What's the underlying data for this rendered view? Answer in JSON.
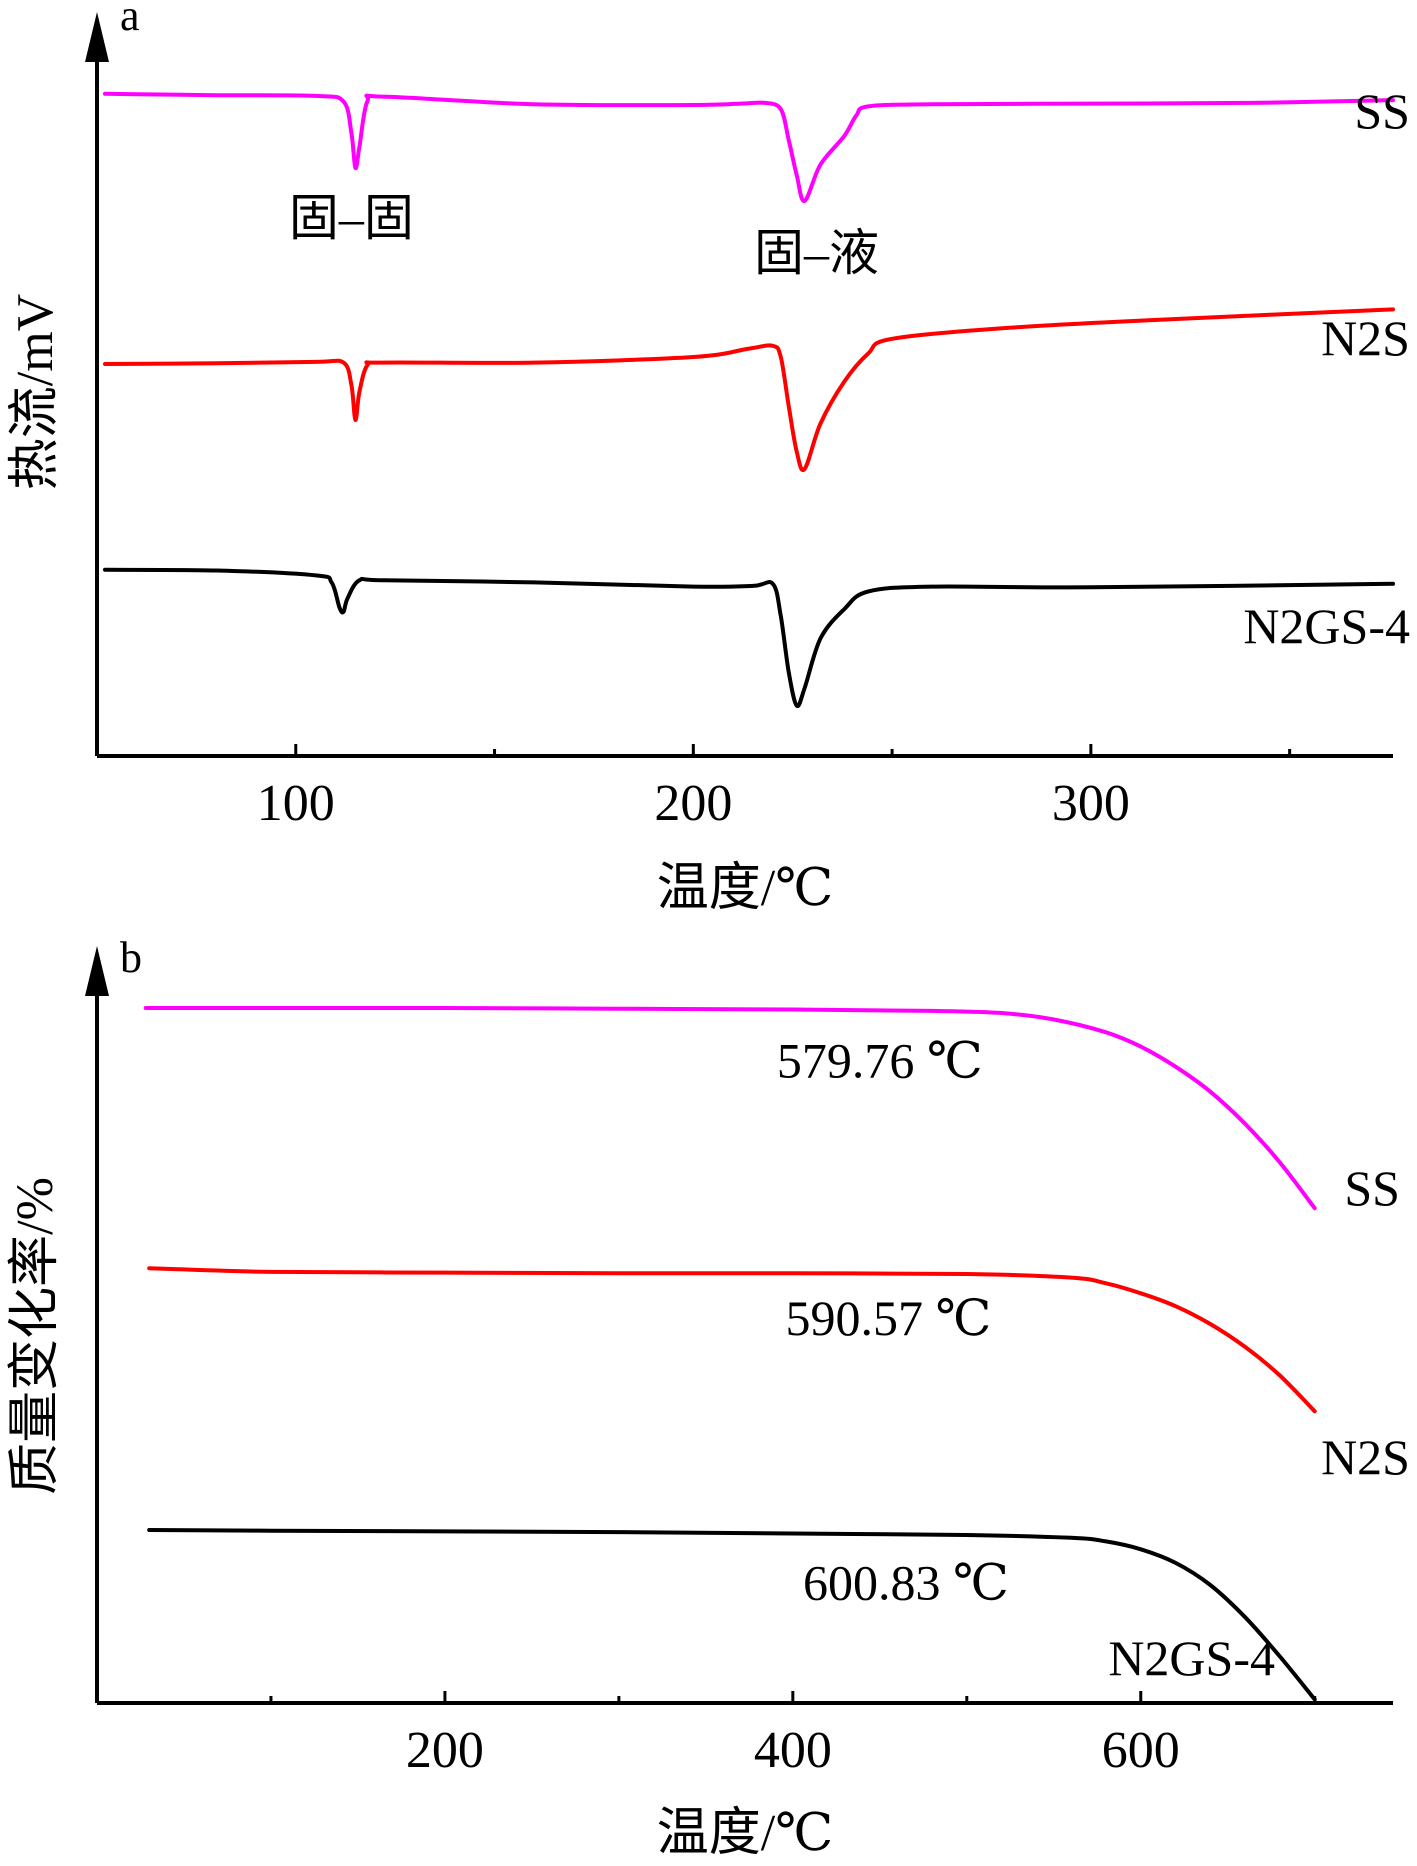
{
  "chart_data": [
    {
      "panel": "a",
      "type": "line",
      "xlabel": "温度/℃",
      "ylabel": "热流/mV",
      "xlim": [
        50,
        376
      ],
      "ylim": [
        0,
        100
      ],
      "xticks": [
        {
          "value": 100,
          "label": "100"
        },
        {
          "value": 200,
          "label": "200"
        },
        {
          "value": 300,
          "label": "300"
        }
      ],
      "minor_xticks": [
        150,
        250,
        350
      ],
      "series": [
        {
          "name": "SS",
          "color": "#ff00ff",
          "x": [
            52,
            80,
            105,
            112,
            114,
            115,
            116,
            118,
            122,
            160,
            200,
            212,
            218,
            222,
            224,
            226,
            228,
            232,
            238,
            241,
            244,
            260,
            300,
            340,
            376
          ],
          "y": [
            94.6,
            94.4,
            94.3,
            93.5,
            89,
            84,
            87,
            93.5,
            94.2,
            93.1,
            93.0,
            93.2,
            93.3,
            92.4,
            88,
            83,
            79.3,
            84.5,
            88.6,
            91.5,
            92.8,
            93.1,
            93.2,
            93.3,
            93.7
          ]
        },
        {
          "name": "N2S",
          "color": "#ff0000",
          "x": [
            52,
            80,
            105,
            112,
            114,
            115,
            116,
            118,
            122,
            160,
            200,
            214,
            220,
            222,
            224,
            226,
            228,
            232,
            238,
            244,
            250,
            280,
            320,
            376
          ],
          "y": [
            56.0,
            56.1,
            56.3,
            56.2,
            53,
            48,
            52,
            55.8,
            56.2,
            56.2,
            57.0,
            58.2,
            58.6,
            57,
            50,
            43.5,
            41.0,
            47.5,
            53.5,
            57.5,
            59.6,
            61.2,
            62.4,
            63.8
          ]
        },
        {
          "name": "N2GS-4",
          "color": "#000000",
          "x": [
            52,
            80,
            105,
            109,
            111,
            112,
            113,
            116,
            122,
            160,
            200,
            215,
            220,
            222,
            224,
            226,
            228,
            232,
            238,
            244,
            260,
            300,
            376
          ],
          "y": [
            26.6,
            26.5,
            25.8,
            24.8,
            21.2,
            20.6,
            22.5,
            25.1,
            25.1,
            24.8,
            24.2,
            24.3,
            24.6,
            20,
            12,
            7.2,
            9.7,
            16.8,
            21.0,
            23.5,
            24.2,
            24.1,
            24.6
          ]
        }
      ],
      "annotations": [
        {
          "text": "固–固",
          "x": 114,
          "y": 77
        },
        {
          "text": "固–液",
          "x": 231,
          "y": 72
        }
      ]
    },
    {
      "panel": "b",
      "type": "line",
      "xlabel": "温度/℃",
      "ylabel": "质量变化率/%",
      "xlim": [
        0,
        745
      ],
      "ylim": [
        0,
        100
      ],
      "xticks": [
        {
          "value": 200,
          "label": "200"
        },
        {
          "value": 400,
          "label": "400"
        },
        {
          "value": 600,
          "label": "600"
        }
      ],
      "minor_xticks": [
        100,
        300,
        500,
        700
      ],
      "series": [
        {
          "name": "SS",
          "color": "#ff00ff",
          "x": [
            28,
            100,
            200,
            300,
            400,
            480,
            520,
            550,
            580,
            600,
            620,
            640,
            660,
            680,
            700
          ],
          "y": [
            97.2,
            97.2,
            97.2,
            97.1,
            97.0,
            96.8,
            96.5,
            95.6,
            93.8,
            91.8,
            89.0,
            85.5,
            81.0,
            75.6,
            69.2
          ]
        },
        {
          "name": "N2S",
          "color": "#ff0000",
          "x": [
            30,
            100,
            200,
            300,
            400,
            500,
            560,
            580,
            600,
            620,
            640,
            660,
            680,
            700
          ],
          "y": [
            60.8,
            60.3,
            60.2,
            60.1,
            60.1,
            60.0,
            59.5,
            58.7,
            57.3,
            55.5,
            53.0,
            49.8,
            45.8,
            40.8
          ]
        },
        {
          "name": "N2GS-4",
          "color": "#000000",
          "x": [
            30,
            100,
            200,
            300,
            400,
            500,
            560,
            580,
            600,
            620,
            640,
            660,
            680,
            700
          ],
          "y": [
            24.2,
            24.1,
            24.0,
            23.9,
            23.7,
            23.5,
            23.1,
            22.6,
            21.5,
            19.6,
            16.5,
            12.0,
            6.5,
            0.5
          ]
        }
      ],
      "annotations": [
        {
          "text": "579.76 ℃",
          "x": 450,
          "y": 90
        },
        {
          "text": "590.57 ℃",
          "x": 455,
          "y": 54
        },
        {
          "text": "600.83 ℃",
          "x": 465,
          "y": 17
        }
      ]
    }
  ]
}
